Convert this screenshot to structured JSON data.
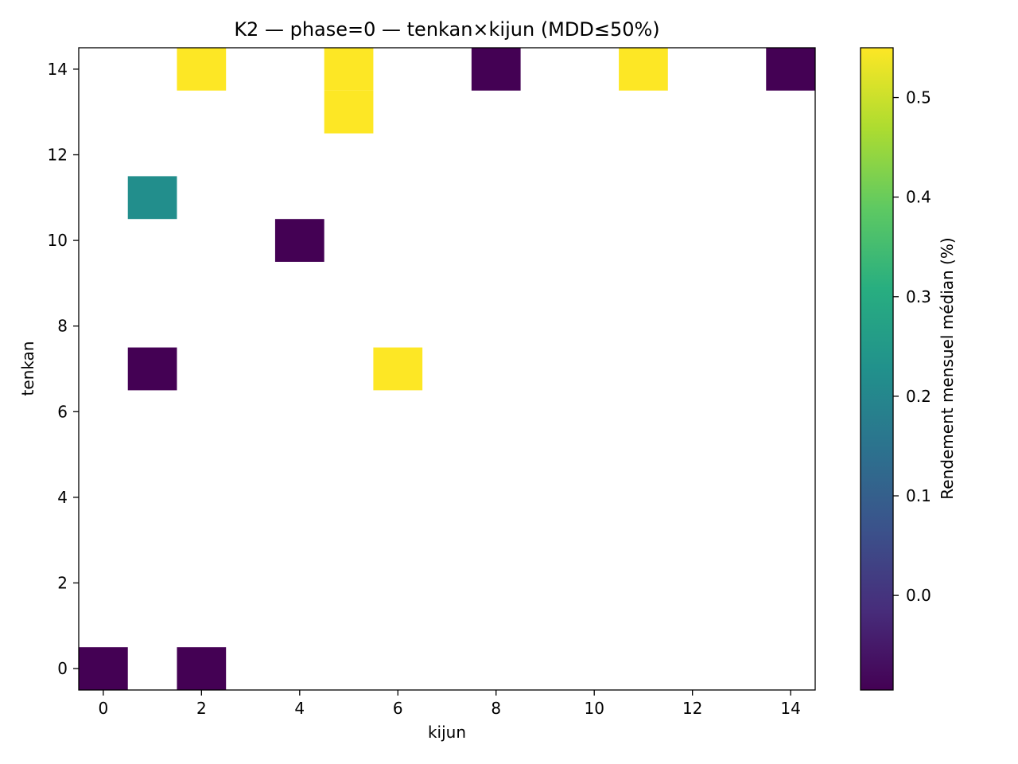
{
  "chart_data": {
    "type": "heatmap",
    "title": "K2 — phase=0 — tenkan×kijun (MDD≤50%)",
    "xlabel": "kijun",
    "ylabel": "tenkan",
    "xlim": [
      -0.5,
      14.5
    ],
    "ylim": [
      -0.5,
      14.5
    ],
    "xticks": [
      0,
      2,
      4,
      6,
      8,
      10,
      12,
      14
    ],
    "yticks": [
      0,
      2,
      4,
      6,
      8,
      10,
      12,
      14
    ],
    "colorbar": {
      "label": "Rendement mensuel médian (%)",
      "min": -0.095,
      "max": 0.55,
      "ticks": [
        0.0,
        0.1,
        0.2,
        0.3,
        0.4,
        0.5
      ],
      "tick_labels": [
        "0.0",
        "0.1",
        "0.2",
        "0.3",
        "0.4",
        "0.5"
      ],
      "colormap": "viridis"
    },
    "cells": [
      {
        "kijun": 0,
        "tenkan": 0,
        "value": -0.095
      },
      {
        "kijun": 2,
        "tenkan": 0,
        "value": -0.095
      },
      {
        "kijun": 1,
        "tenkan": 7,
        "value": -0.095
      },
      {
        "kijun": 6,
        "tenkan": 7,
        "value": 0.55
      },
      {
        "kijun": 4,
        "tenkan": 10,
        "value": -0.095
      },
      {
        "kijun": 1,
        "tenkan": 11,
        "value": 0.22
      },
      {
        "kijun": 5,
        "tenkan": 13,
        "value": 0.55
      },
      {
        "kijun": 2,
        "tenkan": 14,
        "value": 0.55
      },
      {
        "kijun": 5,
        "tenkan": 14,
        "value": 0.55
      },
      {
        "kijun": 8,
        "tenkan": 14,
        "value": -0.095
      },
      {
        "kijun": 11,
        "tenkan": 14,
        "value": 0.55
      },
      {
        "kijun": 14,
        "tenkan": 14,
        "value": -0.095
      }
    ]
  }
}
